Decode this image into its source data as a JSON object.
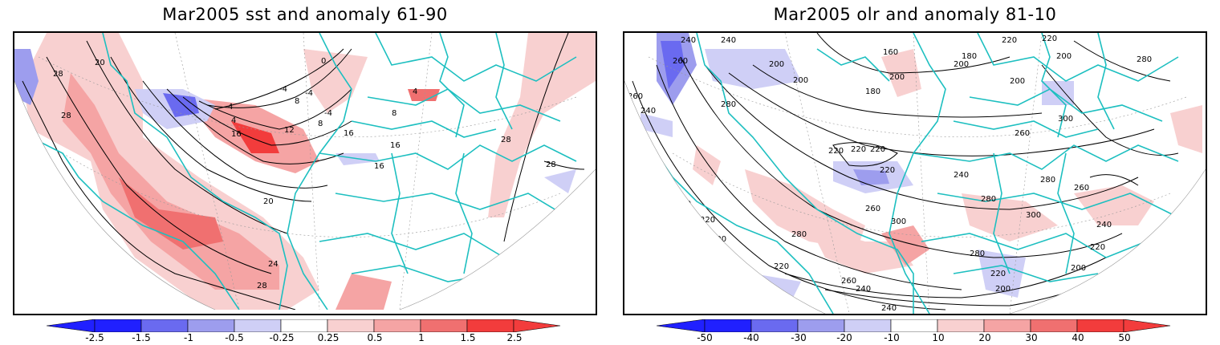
{
  "panels": [
    {
      "title": "Mar2005 sst and anomaly 61-90",
      "contour_labels": [
        "28",
        "28",
        "20",
        "0",
        "-4",
        "-4",
        "4",
        "8",
        "4",
        "16",
        "12",
        "16",
        "8",
        "16",
        "20",
        "24",
        "28",
        "28",
        "28",
        "-4",
        "8",
        "4",
        "16"
      ],
      "colorbar": {
        "labels": [
          "-2.5",
          "-1.5",
          "-1",
          "-0.5",
          "-0.25",
          "0.25",
          "0.5",
          "1",
          "1.5",
          "2.5"
        ],
        "colors": [
          "#2020ff",
          "#6a6af0",
          "#9d9dee",
          "#cfcff6",
          "#ffffff",
          "#f8d0d0",
          "#f5a4a4",
          "#f07070",
          "#f23c3c"
        ]
      }
    },
    {
      "title": "Mar2005 olr and anomaly 81-10",
      "contour_labels": [
        "240",
        "240",
        "260",
        "260",
        "240",
        "200",
        "200",
        "180",
        "200",
        "200",
        "160",
        "180",
        "200",
        "220",
        "280",
        "280",
        "220",
        "220",
        "220",
        "220",
        "240",
        "260",
        "300",
        "280",
        "280",
        "260",
        "200",
        "220",
        "200",
        "220",
        "280",
        "260",
        "240",
        "260",
        "240",
        "220",
        "200",
        "300",
        "300",
        "280",
        "220",
        "200",
        "220",
        "200",
        "240"
      ],
      "colorbar": {
        "labels": [
          "-50",
          "-40",
          "-30",
          "-20",
          "-10",
          "10",
          "20",
          "30",
          "40",
          "50"
        ],
        "colors": [
          "#2020ff",
          "#6a6af0",
          "#9d9dee",
          "#cfcff6",
          "#ffffff",
          "#f8d0d0",
          "#f5a4a4",
          "#f07070",
          "#f23c3c"
        ]
      }
    }
  ],
  "colors": {
    "coast": "#1dbfc0",
    "contour": "#000000",
    "warm_light": "#f8d0d0",
    "warm_mid": "#f5a4a4",
    "warm_strong": "#f07070",
    "warm_max": "#f23c3c",
    "cool_light": "#cfcff6",
    "cool_mid": "#9d9dee",
    "cool_strong": "#6a6af0"
  }
}
